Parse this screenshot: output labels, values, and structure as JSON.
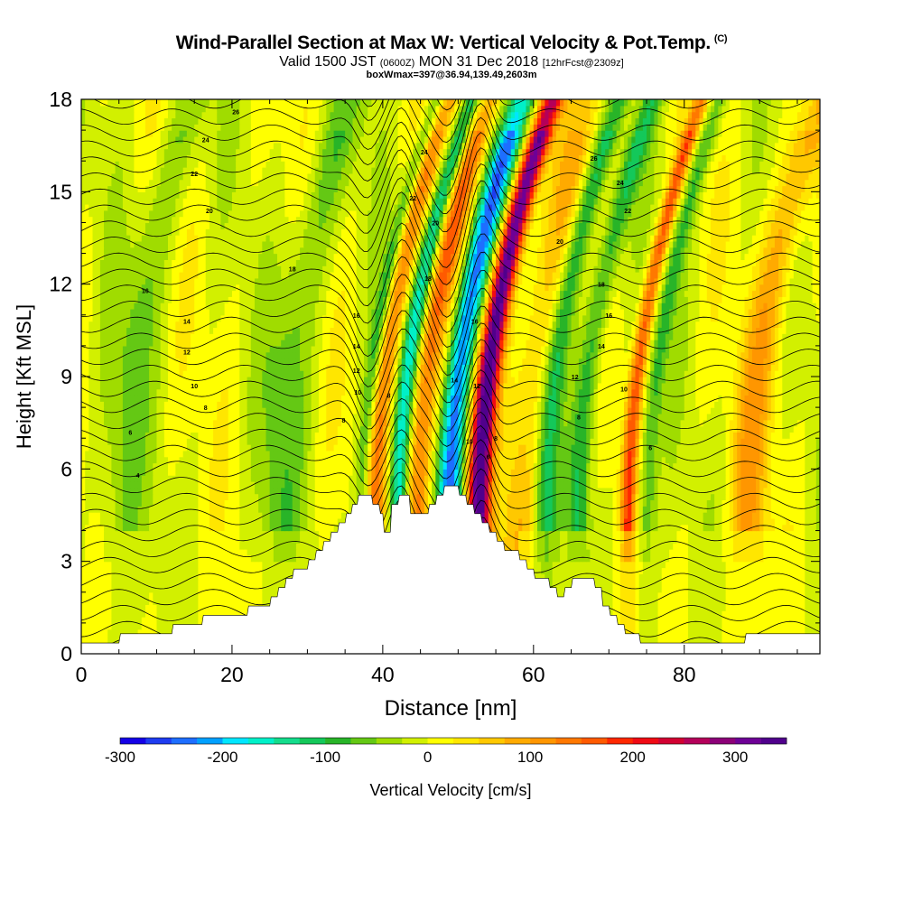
{
  "header": {
    "title": "Wind-Parallel Section at Max W: Vertical Velocity & Pot.Temp.",
    "copyright": "(C)",
    "valid_prefix": "Valid 1500 JST",
    "valid_z": "(0600Z)",
    "valid_date": "MON 31 Dec 2018",
    "forecast": "[12hrFcst@2309z]",
    "boxinfo": "boxWmax=397@36.94,139.49,2603m"
  },
  "chart_data": {
    "type": "heatmap",
    "xlabel": "Distance [nm]",
    "ylabel": "Height [Kft MSL]",
    "xlim": [
      0,
      98
    ],
    "ylim": [
      0,
      18
    ],
    "xticks": [
      0,
      20,
      40,
      60,
      80
    ],
    "yticks": [
      0,
      3,
      6,
      9,
      12,
      15,
      18
    ],
    "colorbar": {
      "label": "Vertical Velocity [cm/s]",
      "min": -300,
      "max": 350,
      "step": 25,
      "ticks": [
        -300,
        -200,
        -100,
        0,
        100,
        200,
        300
      ],
      "colors": [
        "#1400e6",
        "#1e3cf0",
        "#1e6eff",
        "#00a0ff",
        "#00e6ff",
        "#00f0c8",
        "#14dc8c",
        "#14c85a",
        "#28b428",
        "#64c814",
        "#a0dc00",
        "#d2f000",
        "#ffff00",
        "#ffe600",
        "#ffc800",
        "#ffaa00",
        "#ff9600",
        "#ff7800",
        "#ff5a00",
        "#ff2800",
        "#f00a14",
        "#d20032",
        "#b4005a",
        "#8c0078",
        "#6e0096",
        "#50008c"
      ]
    },
    "updraft_cores": [
      {
        "x": 39.0,
        "w": 120,
        "width": 1.4
      },
      {
        "x": 44.5,
        "w": 140,
        "width": 1.6
      },
      {
        "x": 52.7,
        "w": 330,
        "width": 1.5
      },
      {
        "x": 72.5,
        "w": 160,
        "width": 1.0
      },
      {
        "x": 88.5,
        "w": 90,
        "width": 2.5
      },
      {
        "x": 58.0,
        "w": 60,
        "width": 3.0
      }
    ],
    "downdraft_cores": [
      {
        "x": 37.3,
        "w": -90,
        "width": 1.0
      },
      {
        "x": 42.0,
        "w": -150,
        "width": 1.2
      },
      {
        "x": 48.8,
        "w": -230,
        "width": 1.7
      },
      {
        "x": 61.5,
        "w": -110,
        "width": 1.5
      },
      {
        "x": 66.0,
        "w": -100,
        "width": 1.5
      },
      {
        "x": 75.0,
        "w": -80,
        "width": 1.2
      },
      {
        "x": 26.0,
        "w": -60,
        "width": 3.0
      },
      {
        "x": 5.0,
        "w": -50,
        "width": 3.0
      }
    ],
    "terrain_kft": [
      [
        0,
        0.35
      ],
      [
        5,
        0.35
      ],
      [
        5.2,
        0.65
      ],
      [
        12,
        0.65
      ],
      [
        12.2,
        0.95
      ],
      [
        16,
        0.95
      ],
      [
        16.2,
        1.25
      ],
      [
        22,
        1.25
      ],
      [
        22.2,
        1.55
      ],
      [
        25,
        1.55
      ],
      [
        25.2,
        1.85
      ],
      [
        26,
        1.85
      ],
      [
        26.2,
        2.15
      ],
      [
        27,
        2.15
      ],
      [
        27.2,
        2.45
      ],
      [
        28,
        2.45
      ],
      [
        28.2,
        2.75
      ],
      [
        30,
        2.75
      ],
      [
        30.2,
        3.05
      ],
      [
        31,
        3.05
      ],
      [
        31.2,
        3.35
      ],
      [
        32,
        3.35
      ],
      [
        32.2,
        3.65
      ],
      [
        33,
        3.65
      ],
      [
        33.2,
        3.95
      ],
      [
        34,
        3.95
      ],
      [
        34.2,
        4.25
      ],
      [
        35,
        4.25
      ],
      [
        35.2,
        4.55
      ],
      [
        35.8,
        4.55
      ],
      [
        36,
        4.85
      ],
      [
        36.6,
        4.85
      ],
      [
        36.8,
        5.15
      ],
      [
        38.5,
        5.15
      ],
      [
        38.7,
        4.85
      ],
      [
        39.5,
        4.85
      ],
      [
        39.7,
        4.55
      ],
      [
        40,
        4.55
      ],
      [
        40.2,
        3.95
      ],
      [
        41,
        3.95
      ],
      [
        41.2,
        4.85
      ],
      [
        42,
        4.85
      ],
      [
        42.2,
        5.15
      ],
      [
        43.5,
        5.15
      ],
      [
        43.7,
        4.55
      ],
      [
        46,
        4.55
      ],
      [
        46.2,
        4.85
      ],
      [
        47,
        4.85
      ],
      [
        47.2,
        5.15
      ],
      [
        48,
        5.15
      ],
      [
        48.2,
        5.45
      ],
      [
        50,
        5.45
      ],
      [
        50.2,
        5.15
      ],
      [
        51,
        5.15
      ],
      [
        51.2,
        4.85
      ],
      [
        52,
        4.85
      ],
      [
        52.2,
        4.55
      ],
      [
        53,
        4.55
      ],
      [
        53.2,
        4.25
      ],
      [
        54,
        4.25
      ],
      [
        54.2,
        3.95
      ],
      [
        55,
        3.95
      ],
      [
        55.2,
        3.65
      ],
      [
        56,
        3.65
      ],
      [
        56.2,
        3.35
      ],
      [
        58,
        3.35
      ],
      [
        58.2,
        3.05
      ],
      [
        59,
        3.05
      ],
      [
        59.2,
        2.75
      ],
      [
        60,
        2.75
      ],
      [
        60.2,
        2.45
      ],
      [
        62,
        2.45
      ],
      [
        62.2,
        2.15
      ],
      [
        63,
        2.15
      ],
      [
        63.2,
        1.85
      ],
      [
        64,
        1.85
      ],
      [
        64.2,
        2.15
      ],
      [
        65,
        2.15
      ],
      [
        65.2,
        2.45
      ],
      [
        68,
        2.45
      ],
      [
        68.2,
        2.15
      ],
      [
        69,
        2.15
      ],
      [
        69.2,
        1.55
      ],
      [
        70,
        1.55
      ],
      [
        70.2,
        1.25
      ],
      [
        71,
        1.25
      ],
      [
        71.2,
        0.95
      ],
      [
        72,
        0.95
      ],
      [
        72.2,
        0.65
      ],
      [
        74,
        0.65
      ],
      [
        74.2,
        0.35
      ],
      [
        88,
        0.35
      ],
      [
        88.2,
        0.65
      ],
      [
        98,
        0.65
      ]
    ],
    "theta_labels": [
      {
        "x": 20.5,
        "y": 17.6,
        "text": "26"
      },
      {
        "x": 16.5,
        "y": 16.7,
        "text": "24"
      },
      {
        "x": 15.0,
        "y": 15.6,
        "text": "22"
      },
      {
        "x": 17.0,
        "y": 14.4,
        "text": "20"
      },
      {
        "x": 28.0,
        "y": 12.5,
        "text": "18"
      },
      {
        "x": 8.5,
        "y": 11.8,
        "text": "16"
      },
      {
        "x": 14.0,
        "y": 10.8,
        "text": "14"
      },
      {
        "x": 14.0,
        "y": 9.8,
        "text": "12"
      },
      {
        "x": 15.0,
        "y": 8.7,
        "text": "10"
      },
      {
        "x": 16.5,
        "y": 8.0,
        "text": "8"
      },
      {
        "x": 6.5,
        "y": 7.2,
        "text": "6"
      },
      {
        "x": 7.5,
        "y": 5.8,
        "text": "4"
      },
      {
        "x": 36.5,
        "y": 11.0,
        "text": "16"
      },
      {
        "x": 36.5,
        "y": 10.0,
        "text": "14"
      },
      {
        "x": 36.5,
        "y": 9.2,
        "text": "12"
      },
      {
        "x": 36.7,
        "y": 8.5,
        "text": "10"
      },
      {
        "x": 34.8,
        "y": 7.6,
        "text": "8"
      },
      {
        "x": 40.8,
        "y": 8.4,
        "text": "8"
      },
      {
        "x": 45.5,
        "y": 16.3,
        "text": "24"
      },
      {
        "x": 44.0,
        "y": 14.8,
        "text": "22"
      },
      {
        "x": 47.0,
        "y": 14.0,
        "text": "20"
      },
      {
        "x": 46.0,
        "y": 12.2,
        "text": "18"
      },
      {
        "x": 52.2,
        "y": 10.8,
        "text": "16"
      },
      {
        "x": 49.5,
        "y": 8.9,
        "text": "14"
      },
      {
        "x": 52.5,
        "y": 8.7,
        "text": "12"
      },
      {
        "x": 51.5,
        "y": 6.9,
        "text": "10"
      },
      {
        "x": 55.0,
        "y": 7.0,
        "text": "8"
      },
      {
        "x": 54.0,
        "y": 6.4,
        "text": "6"
      },
      {
        "x": 68.0,
        "y": 16.1,
        "text": "26"
      },
      {
        "x": 71.5,
        "y": 15.3,
        "text": "24"
      },
      {
        "x": 72.5,
        "y": 14.4,
        "text": "22"
      },
      {
        "x": 63.5,
        "y": 13.4,
        "text": "20"
      },
      {
        "x": 69.0,
        "y": 12.0,
        "text": "18"
      },
      {
        "x": 70.0,
        "y": 11.0,
        "text": "16"
      },
      {
        "x": 69.0,
        "y": 10.0,
        "text": "14"
      },
      {
        "x": 65.5,
        "y": 9.0,
        "text": "12"
      },
      {
        "x": 72.0,
        "y": 8.6,
        "text": "10"
      },
      {
        "x": 66.0,
        "y": 7.7,
        "text": "8"
      },
      {
        "x": 75.5,
        "y": 6.7,
        "text": "6"
      }
    ]
  }
}
